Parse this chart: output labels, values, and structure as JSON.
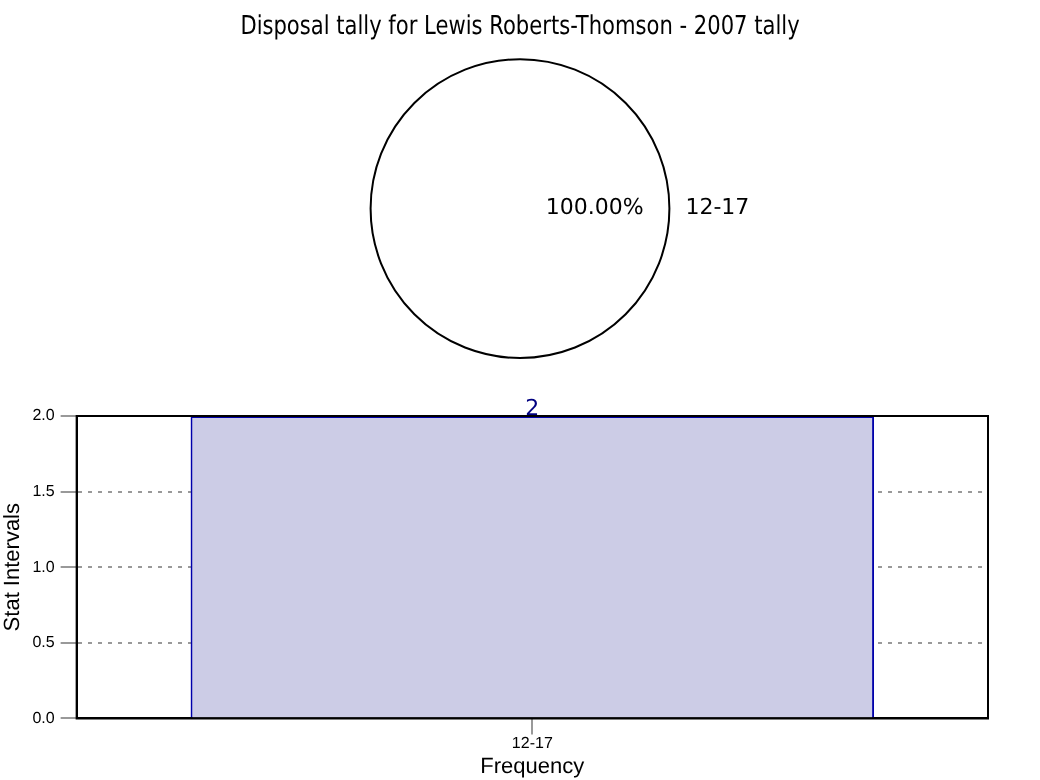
{
  "chart_data": [
    {
      "type": "pie",
      "title": "Disposal tally for Lewis Roberts-Thomson - 2007 tally",
      "categories": [
        "12-17"
      ],
      "values": [
        100
      ],
      "colors": [
        "#ffffff"
      ],
      "value_labels": [
        "100.00%"
      ],
      "legend": false
    },
    {
      "type": "bar",
      "categories": [
        "12-17"
      ],
      "values": [
        2
      ],
      "color": "#cccce6",
      "xlabel": "Frequency",
      "ylabel": "Stat Intervals",
      "ylim": [
        0,
        2
      ],
      "yticks": [
        {
          "value": 0,
          "label": "0.0"
        },
        {
          "value": 0.5,
          "label": "0.5"
        },
        {
          "value": 1,
          "label": "1.0"
        },
        {
          "value": 1.5,
          "label": "1.5"
        },
        {
          "value": 2,
          "label": "2.0"
        }
      ],
      "grid": true,
      "data_labels": true,
      "legend": false
    }
  ]
}
